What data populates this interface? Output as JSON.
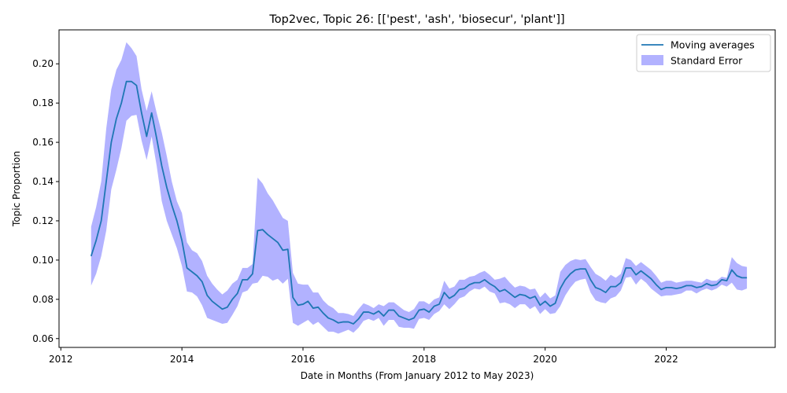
{
  "chart_data": {
    "type": "line",
    "title": "Top2vec, Topic 26: [['pest', 'ash', 'biosecur', 'plant']]",
    "xlabel": "Date in Months (From January 2012 to May 2023)",
    "ylabel": "Topic Proportion",
    "xlim": [
      2011.97,
      2023.8
    ],
    "ylim": [
      0.0555,
      0.2173
    ],
    "x_ticks": [
      2012,
      2014,
      2016,
      2018,
      2020,
      2022
    ],
    "y_ticks": [
      0.06,
      0.08,
      0.1,
      0.12,
      0.14,
      0.16,
      0.18,
      0.2
    ],
    "y_tick_labels": [
      "0.06",
      "0.08",
      "0.10",
      "0.12",
      "0.14",
      "0.16",
      "0.18",
      "0.20"
    ],
    "grid": false,
    "legend_position": "upper-right",
    "colors": {
      "line": "#1f77b4",
      "band": "#0000ff",
      "band_opacity": 0.3
    },
    "series": [
      {
        "name": "Moving averages",
        "kind": "line",
        "x": [
          2012.5,
          2012.583,
          2012.667,
          2012.75,
          2012.833,
          2012.917,
          2013.0,
          2013.083,
          2013.167,
          2013.25,
          2013.333,
          2013.417,
          2013.5,
          2013.583,
          2013.667,
          2013.75,
          2013.833,
          2013.917,
          2014.0,
          2014.083,
          2014.167,
          2014.25,
          2014.333,
          2014.417,
          2014.5,
          2014.583,
          2014.667,
          2014.75,
          2014.833,
          2014.917,
          2015.0,
          2015.083,
          2015.167,
          2015.25,
          2015.333,
          2015.417,
          2015.5,
          2015.583,
          2015.667,
          2015.75,
          2015.833,
          2015.917,
          2016.0,
          2016.083,
          2016.167,
          2016.25,
          2016.333,
          2016.417,
          2016.5,
          2016.583,
          2016.667,
          2016.75,
          2016.833,
          2016.917,
          2017.0,
          2017.083,
          2017.167,
          2017.25,
          2017.333,
          2017.417,
          2017.5,
          2017.583,
          2017.667,
          2017.75,
          2017.833,
          2017.917,
          2018.0,
          2018.083,
          2018.167,
          2018.25,
          2018.333,
          2018.417,
          2018.5,
          2018.583,
          2018.667,
          2018.75,
          2018.833,
          2018.917,
          2019.0,
          2019.083,
          2019.167,
          2019.25,
          2019.333,
          2019.417,
          2019.5,
          2019.583,
          2019.667,
          2019.75,
          2019.833,
          2019.917,
          2020.0,
          2020.083,
          2020.167,
          2020.25,
          2020.333,
          2020.417,
          2020.5,
          2020.583,
          2020.667,
          2020.75,
          2020.833,
          2020.917,
          2021.0,
          2021.083,
          2021.167,
          2021.25,
          2021.333,
          2021.417,
          2021.5,
          2021.583,
          2021.667,
          2021.75,
          2021.833,
          2021.917,
          2022.0,
          2022.083,
          2022.167,
          2022.25,
          2022.333,
          2022.417,
          2022.5,
          2022.583,
          2022.667,
          2022.75,
          2022.833,
          2022.917,
          2023.0,
          2023.083,
          2023.167,
          2023.25,
          2023.333
        ],
        "values": [
          0.102,
          0.11,
          0.12,
          0.14,
          0.16,
          0.172,
          0.18,
          0.191,
          0.191,
          0.189,
          0.175,
          0.163,
          0.175,
          0.162,
          0.148,
          0.137,
          0.128,
          0.12,
          0.11,
          0.096,
          0.094,
          0.092,
          0.089,
          0.082,
          0.079,
          0.077,
          0.075,
          0.076,
          0.08,
          0.083,
          0.09,
          0.09,
          0.093,
          0.115,
          0.1155,
          0.113,
          0.111,
          0.109,
          0.105,
          0.1055,
          0.081,
          0.077,
          0.0775,
          0.079,
          0.0755,
          0.076,
          0.073,
          0.0705,
          0.0695,
          0.068,
          0.0685,
          0.0685,
          0.0675,
          0.07,
          0.0735,
          0.0735,
          0.0725,
          0.074,
          0.0715,
          0.0745,
          0.0745,
          0.0715,
          0.0705,
          0.0695,
          0.0705,
          0.0745,
          0.075,
          0.0735,
          0.0765,
          0.0775,
          0.0835,
          0.0805,
          0.082,
          0.085,
          0.0855,
          0.0875,
          0.0885,
          0.0885,
          0.09,
          0.088,
          0.0865,
          0.084,
          0.085,
          0.083,
          0.081,
          0.0825,
          0.082,
          0.0805,
          0.0815,
          0.077,
          0.079,
          0.0765,
          0.078,
          0.0855,
          0.09,
          0.093,
          0.095,
          0.0955,
          0.0955,
          0.09,
          0.086,
          0.085,
          0.0835,
          0.0865,
          0.0865,
          0.0885,
          0.096,
          0.096,
          0.0925,
          0.0945,
          0.0925,
          0.0905,
          0.0875,
          0.085,
          0.086,
          0.086,
          0.0855,
          0.086,
          0.087,
          0.087,
          0.086,
          0.0865,
          0.088,
          0.087,
          0.0875,
          0.09,
          0.0895,
          0.095,
          0.092,
          0.091,
          0.091
        ]
      },
      {
        "name": "Standard Error",
        "kind": "band",
        "x": [
          2012.5,
          2012.583,
          2012.667,
          2012.75,
          2012.833,
          2012.917,
          2013.0,
          2013.083,
          2013.167,
          2013.25,
          2013.333,
          2013.417,
          2013.5,
          2013.583,
          2013.667,
          2013.75,
          2013.833,
          2013.917,
          2014.0,
          2014.083,
          2014.167,
          2014.25,
          2014.333,
          2014.417,
          2014.5,
          2014.583,
          2014.667,
          2014.75,
          2014.833,
          2014.917,
          2015.0,
          2015.083,
          2015.167,
          2015.25,
          2015.333,
          2015.417,
          2015.5,
          2015.583,
          2015.667,
          2015.75,
          2015.833,
          2015.917,
          2016.0,
          2016.083,
          2016.167,
          2016.25,
          2016.333,
          2016.417,
          2016.5,
          2016.583,
          2016.667,
          2016.75,
          2016.833,
          2016.917,
          2017.0,
          2017.083,
          2017.167,
          2017.25,
          2017.333,
          2017.417,
          2017.5,
          2017.583,
          2017.667,
          2017.75,
          2017.833,
          2017.917,
          2018.0,
          2018.083,
          2018.167,
          2018.25,
          2018.333,
          2018.417,
          2018.5,
          2018.583,
          2018.667,
          2018.75,
          2018.833,
          2018.917,
          2019.0,
          2019.083,
          2019.167,
          2019.25,
          2019.333,
          2019.417,
          2019.5,
          2019.583,
          2019.667,
          2019.75,
          2019.833,
          2019.917,
          2020.0,
          2020.083,
          2020.167,
          2020.25,
          2020.333,
          2020.417,
          2020.5,
          2020.583,
          2020.667,
          2020.75,
          2020.833,
          2020.917,
          2021.0,
          2021.083,
          2021.167,
          2021.25,
          2021.333,
          2021.417,
          2021.5,
          2021.583,
          2021.667,
          2021.75,
          2021.833,
          2021.917,
          2022.0,
          2022.083,
          2022.167,
          2022.25,
          2022.333,
          2022.417,
          2022.5,
          2022.583,
          2022.667,
          2022.75,
          2022.833,
          2022.917,
          2023.0,
          2023.083,
          2023.167,
          2023.25,
          2023.333
        ],
        "lower": [
          0.087,
          0.093,
          0.102,
          0.115,
          0.136,
          0.146,
          0.157,
          0.171,
          0.1735,
          0.174,
          0.161,
          0.151,
          0.163,
          0.148,
          0.13,
          0.12,
          0.113,
          0.106,
          0.097,
          0.084,
          0.0835,
          0.0815,
          0.077,
          0.0705,
          0.0695,
          0.0685,
          0.0675,
          0.068,
          0.072,
          0.0765,
          0.0835,
          0.0845,
          0.088,
          0.0885,
          0.092,
          0.0915,
          0.0895,
          0.0905,
          0.088,
          0.0905,
          0.068,
          0.0665,
          0.068,
          0.0695,
          0.067,
          0.0685,
          0.066,
          0.0635,
          0.0635,
          0.0625,
          0.0635,
          0.0645,
          0.063,
          0.0655,
          0.069,
          0.07,
          0.069,
          0.0705,
          0.0665,
          0.0695,
          0.0695,
          0.066,
          0.0655,
          0.0655,
          0.065,
          0.07,
          0.0705,
          0.0695,
          0.0725,
          0.074,
          0.0775,
          0.075,
          0.0775,
          0.0805,
          0.0815,
          0.084,
          0.0855,
          0.085,
          0.0865,
          0.084,
          0.083,
          0.078,
          0.0785,
          0.0775,
          0.0755,
          0.0775,
          0.0775,
          0.075,
          0.0765,
          0.0725,
          0.075,
          0.0725,
          0.073,
          0.0765,
          0.082,
          0.086,
          0.089,
          0.09,
          0.0905,
          0.0835,
          0.0795,
          0.0785,
          0.078,
          0.0805,
          0.0815,
          0.0845,
          0.091,
          0.0915,
          0.0875,
          0.0905,
          0.0885,
          0.0855,
          0.0835,
          0.0815,
          0.082,
          0.082,
          0.0825,
          0.083,
          0.0845,
          0.0845,
          0.083,
          0.0845,
          0.0855,
          0.0845,
          0.0855,
          0.0875,
          0.0865,
          0.0885,
          0.085,
          0.0845,
          0.0855
        ],
        "upper": [
          0.117,
          0.127,
          0.14,
          0.167,
          0.187,
          0.197,
          0.202,
          0.211,
          0.208,
          0.204,
          0.187,
          0.176,
          0.186,
          0.175,
          0.165,
          0.153,
          0.14,
          0.13,
          0.124,
          0.109,
          0.105,
          0.1035,
          0.0995,
          0.092,
          0.088,
          0.085,
          0.0825,
          0.0845,
          0.088,
          0.09,
          0.096,
          0.096,
          0.098,
          0.142,
          0.139,
          0.134,
          0.1305,
          0.126,
          0.1215,
          0.12,
          0.0935,
          0.088,
          0.0875,
          0.0875,
          0.0835,
          0.0835,
          0.0795,
          0.077,
          0.0755,
          0.073,
          0.073,
          0.0725,
          0.0715,
          0.075,
          0.078,
          0.077,
          0.0755,
          0.0775,
          0.0765,
          0.0785,
          0.0785,
          0.0765,
          0.0745,
          0.0735,
          0.075,
          0.079,
          0.079,
          0.0775,
          0.08,
          0.081,
          0.0895,
          0.0855,
          0.0865,
          0.09,
          0.09,
          0.0915,
          0.092,
          0.0935,
          0.0945,
          0.0925,
          0.09,
          0.0905,
          0.0915,
          0.0885,
          0.086,
          0.087,
          0.0865,
          0.085,
          0.0855,
          0.081,
          0.0835,
          0.0805,
          0.082,
          0.094,
          0.0975,
          0.0995,
          0.1005,
          0.1,
          0.1005,
          0.0965,
          0.093,
          0.0915,
          0.0895,
          0.0925,
          0.091,
          0.093,
          0.101,
          0.1,
          0.097,
          0.099,
          0.097,
          0.095,
          0.092,
          0.0885,
          0.0895,
          0.0895,
          0.0885,
          0.089,
          0.0895,
          0.0895,
          0.089,
          0.0885,
          0.0905,
          0.0895,
          0.0895,
          0.0915,
          0.091,
          0.1015,
          0.0985,
          0.097,
          0.0965
        ]
      }
    ]
  }
}
